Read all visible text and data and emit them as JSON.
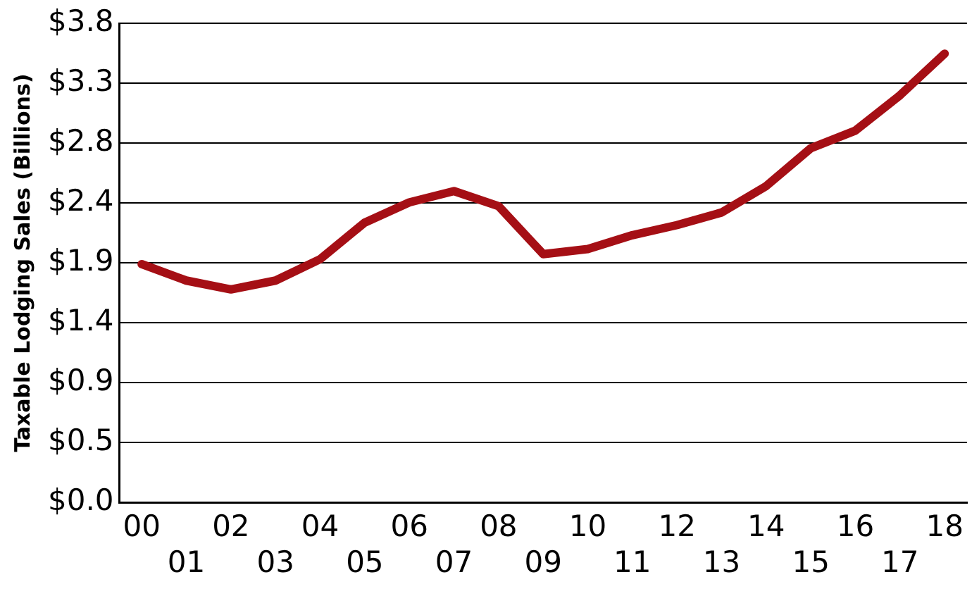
{
  "chart_data": {
    "type": "line",
    "ylabel": "Taxable Lodging Sales (Billions)",
    "categories": [
      "00",
      "01",
      "02",
      "03",
      "04",
      "05",
      "06",
      "07",
      "08",
      "09",
      "10",
      "11",
      "12",
      "13",
      "14",
      "15",
      "16",
      "17",
      "18"
    ],
    "series": [
      {
        "color": "#a50f15",
        "values": [
          1.89,
          1.76,
          1.69,
          1.76,
          1.93,
          2.22,
          2.38,
          2.47,
          2.35,
          1.97,
          2.01,
          2.12,
          2.2,
          2.3,
          2.51,
          2.81,
          2.95,
          3.23,
          3.56
        ]
      }
    ],
    "ylim": [
      0,
      3.8
    ],
    "yticks": [
      {
        "value": 0,
        "label": "$0.0"
      },
      {
        "value": 0.475,
        "label": "$0.5"
      },
      {
        "value": 0.95,
        "label": "$0.9"
      },
      {
        "value": 1.425,
        "label": "$1.4"
      },
      {
        "value": 1.9,
        "label": "$1.9"
      },
      {
        "value": 2.375,
        "label": "$2.4"
      },
      {
        "value": 2.85,
        "label": "$2.8"
      },
      {
        "value": 3.325,
        "label": "$3.3"
      },
      {
        "value": 3.8,
        "label": "$3.8"
      }
    ],
    "grid": "y",
    "legend": false,
    "marker": "none",
    "line_style": "solid"
  }
}
